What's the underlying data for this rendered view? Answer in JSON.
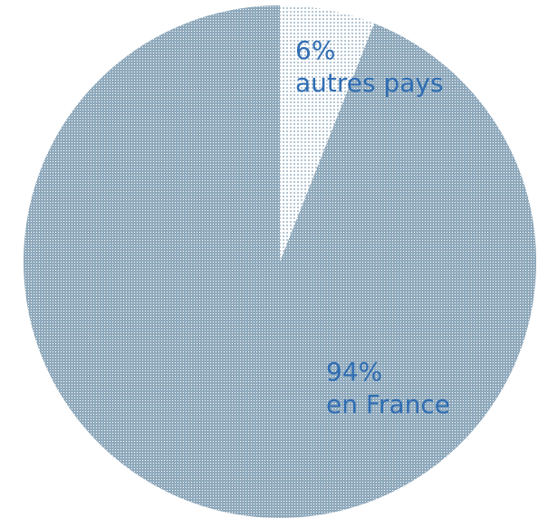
{
  "chart_data": {
    "type": "pie",
    "categories": [
      "autres pays",
      "en France"
    ],
    "values": [
      6,
      94
    ],
    "value_labels": [
      "6%",
      "94%"
    ],
    "colors": [
      "#b4c6d3",
      "#8fa9bc"
    ],
    "start_angle": 0,
    "direction": "clockwise"
  }
}
